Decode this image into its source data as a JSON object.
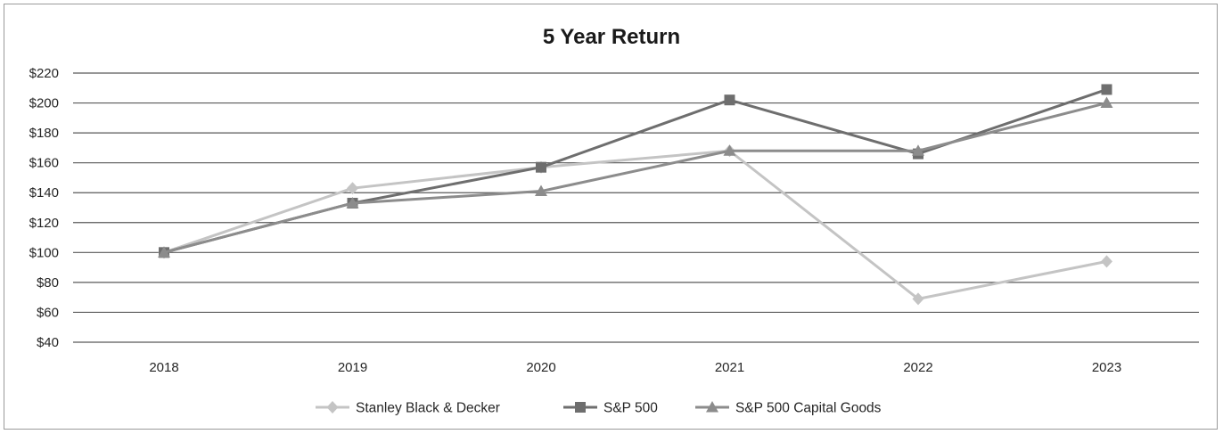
{
  "chart_data": {
    "type": "line",
    "title": "5 Year Return",
    "xlabel": "",
    "ylabel": "",
    "x": [
      "2018",
      "2019",
      "2020",
      "2021",
      "2022",
      "2023"
    ],
    "ylim": [
      40,
      220
    ],
    "yticks": [
      40,
      60,
      80,
      100,
      120,
      140,
      160,
      180,
      200,
      220
    ],
    "ytick_labels": [
      "$40",
      "$60",
      "$80",
      "$100",
      "$120",
      "$140",
      "$160",
      "$180",
      "$200",
      "$220"
    ],
    "grid": true,
    "legend_position": "bottom",
    "series": [
      {
        "name": "Stanley Black & Decker",
        "marker": "diamond",
        "color": "#c4c4c4",
        "values": [
          100,
          143,
          157,
          168,
          69,
          94
        ]
      },
      {
        "name": "S&P 500",
        "marker": "square",
        "color": "#6e6e6e",
        "values": [
          100,
          133,
          157,
          202,
          166,
          209
        ]
      },
      {
        "name": "S&P 500 Capital Goods",
        "marker": "triangle",
        "color": "#8c8c8c",
        "values": [
          100,
          133,
          141,
          168,
          168,
          200
        ]
      }
    ]
  }
}
